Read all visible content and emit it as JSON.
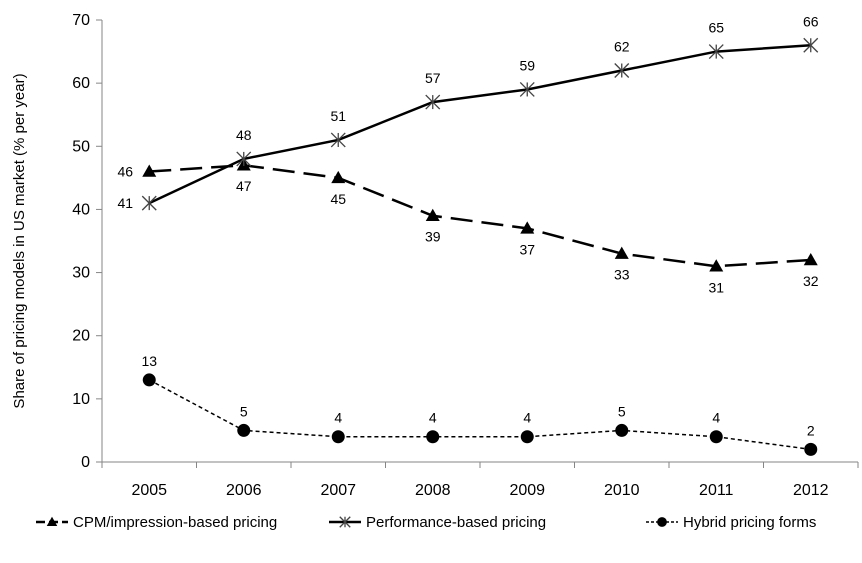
{
  "chart_data": {
    "type": "line",
    "title": "",
    "xlabel": "",
    "ylabel": "Share of pricing models in US market (% per year)",
    "ylim": [
      0,
      70
    ],
    "yticks": [
      0,
      10,
      20,
      30,
      40,
      50,
      60,
      70
    ],
    "grid": false,
    "legend_position": "bottom",
    "x": [
      "2005",
      "2006",
      "2007",
      "2008",
      "2009",
      "2010",
      "2011",
      "2012"
    ],
    "series": [
      {
        "name": "CPM/impression-based pricing",
        "values": [
          46,
          47,
          45,
          39,
          37,
          33,
          31,
          32
        ],
        "marker": "triangle",
        "line_style": "long-dash",
        "color": "#000000"
      },
      {
        "name": "Performance-based pricing",
        "values": [
          41,
          48,
          51,
          57,
          59,
          62,
          65,
          66
        ],
        "marker": "asterisk",
        "line_style": "solid",
        "color": "#000000"
      },
      {
        "name": "Hybrid pricing forms",
        "values": [
          13,
          5,
          4,
          4,
          4,
          5,
          4,
          2
        ],
        "marker": "circle",
        "line_style": "short-dash",
        "color": "#000000"
      }
    ]
  }
}
